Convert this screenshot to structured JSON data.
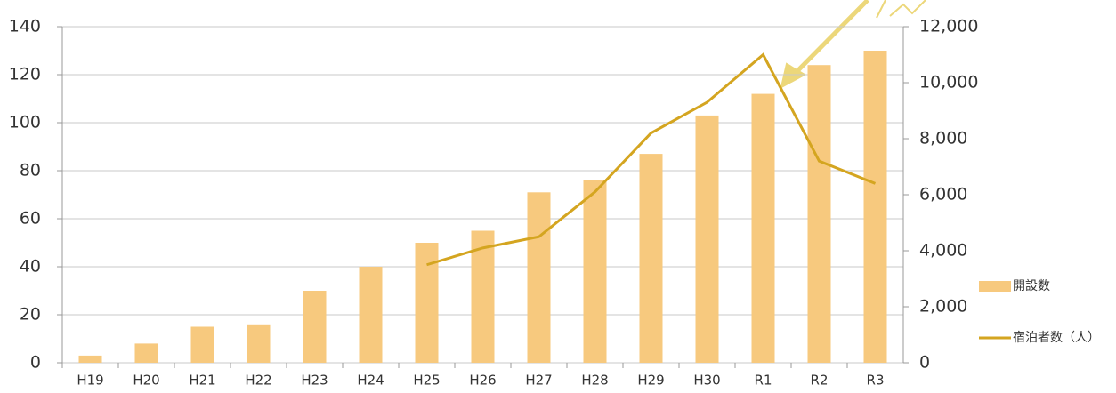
{
  "chart_data": {
    "type": "bar-line",
    "categories": [
      "H19",
      "H20",
      "H21",
      "H22",
      "H23",
      "H24",
      "H25",
      "H26",
      "H27",
      "H28",
      "H29",
      "H30",
      "R1",
      "R2",
      "R3"
    ],
    "series": [
      {
        "name": "開設数",
        "type": "bar",
        "color": "#f7c97e",
        "values": [
          3,
          8,
          15,
          16,
          30,
          40,
          50,
          55,
          71,
          76,
          87,
          103,
          112,
          124,
          130
        ]
      },
      {
        "name": "宿泊者数（人）",
        "type": "line",
        "axis": "y2",
        "color": "#d4a520",
        "values": [
          null,
          null,
          null,
          null,
          null,
          null,
          3500,
          4100,
          4500,
          6100,
          8200,
          9300,
          11000,
          7200,
          6400
        ]
      }
    ],
    "ylim": [
      0,
      140
    ],
    "yticks": [
      0,
      20,
      40,
      60,
      80,
      100,
      120,
      140
    ],
    "y2lim": [
      0,
      12000
    ],
    "y2ticks": [
      0,
      {
        "value": 2000,
        "label": "2,000"
      },
      {
        "value": 4000,
        "label": "4,000"
      },
      {
        "value": 6000,
        "label": "6,000"
      },
      {
        "value": 8000,
        "label": "8,000"
      },
      {
        "value": 10000,
        "label": "10,000"
      },
      {
        "value": 12000,
        "label": "12,000"
      }
    ],
    "grid": true
  }
}
